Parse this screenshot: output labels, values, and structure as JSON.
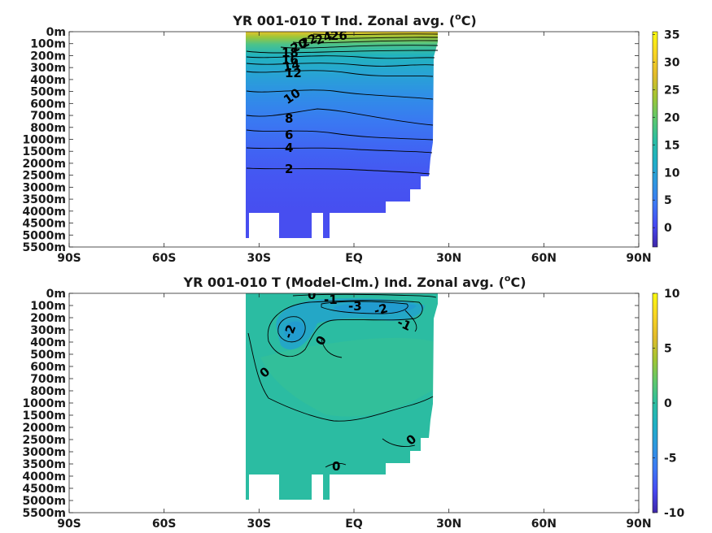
{
  "colors": {
    "parula": [
      "#3e26a8",
      "#4748f2",
      "#3d78f5",
      "#2f97e0",
      "#1fb0c5",
      "#2cbea0",
      "#60c86b",
      "#a3c532",
      "#e3bb2a",
      "#f9d523",
      "#f9fb0e"
    ],
    "background": "#ffffff",
    "axis": "#262626",
    "contour": "#000000"
  },
  "chart_data": [
    {
      "type": "heatmap",
      "title_main": "YR 001-010 T Ind. Zonal avg. (",
      "title_sup": "o",
      "title_end": "C)",
      "xlabel": "",
      "ylabel": "",
      "x_ticks": [
        "90S",
        "60S",
        "30S",
        "EQ",
        "30N",
        "60N",
        "90N"
      ],
      "y_ticks": [
        "0m",
        "100m",
        "200m",
        "300m",
        "400m",
        "500m",
        "600m",
        "700m",
        "800m",
        "1000m",
        "1500m",
        "2000m",
        "2500m",
        "3000m",
        "3500m",
        "4000m",
        "4500m",
        "5000m",
        "5500m"
      ],
      "xlim": [
        -90,
        90
      ],
      "clim": [
        -3.5,
        35.5
      ],
      "colorbar_ticks": [
        "0",
        "5",
        "10",
        "15",
        "20",
        "25",
        "30",
        "35"
      ],
      "colorbar_values": [
        0,
        5,
        10,
        15,
        20,
        25,
        30,
        35
      ],
      "contour_labels": [
        {
          "text": "26",
          "lat": -13,
          "depth": "0m-100m",
          "value": 26
        },
        {
          "text": "24",
          "lat": -16,
          "depth": "100m",
          "value": 24
        },
        {
          "text": "22",
          "lat": -20,
          "depth": "100m",
          "value": 22
        },
        {
          "text": "20",
          "lat": -23,
          "depth": "100m",
          "value": 20
        },
        {
          "text": "18",
          "lat": -26,
          "depth": "200m",
          "value": 18
        },
        {
          "text": "16",
          "lat": -26,
          "depth": "200m",
          "value": 16
        },
        {
          "text": "14",
          "lat": -25,
          "depth": "300m",
          "value": 14
        },
        {
          "text": "12",
          "lat": -25,
          "depth": "300m",
          "value": 12
        },
        {
          "text": "10",
          "lat": -25,
          "depth": "500m",
          "value": 10
        },
        {
          "text": "8",
          "lat": -26,
          "depth": "700m",
          "value": 8
        },
        {
          "text": "6",
          "lat": -26,
          "depth": "800m",
          "value": 6
        },
        {
          "text": "4",
          "lat": -27,
          "depth": "1500m",
          "value": 4
        },
        {
          "text": "2",
          "lat": -27,
          "depth": "2500m",
          "value": 2
        }
      ],
      "land_mask": "ocean basin spans approx. 35S-28N; open-ocean bottom shallows northward; deep sections only near 23S-15S and 10S"
    },
    {
      "type": "heatmap",
      "title_main": "YR 001-010 T (Model-Clm.) Ind. Zonal avg. (",
      "title_sup": "o",
      "title_end": "C)",
      "xlabel": "",
      "ylabel": "",
      "x_ticks": [
        "90S",
        "60S",
        "30S",
        "EQ",
        "30N",
        "60N",
        "90N"
      ],
      "y_ticks": [
        "0m",
        "100m",
        "200m",
        "300m",
        "400m",
        "500m",
        "600m",
        "700m",
        "800m",
        "1000m",
        "1500m",
        "2000m",
        "2500m",
        "3000m",
        "3500m",
        "4000m",
        "4500m",
        "5000m",
        "5500m"
      ],
      "xlim": [
        -90,
        90
      ],
      "clim": [
        -10,
        10
      ],
      "colorbar_ticks": [
        "10",
        "5",
        "0",
        "-5",
        "-10"
      ],
      "colorbar_values": [
        10,
        5,
        0,
        -5,
        -10
      ],
      "contour_labels": [
        {
          "text": "0",
          "lat": -15,
          "depth": "0m",
          "value": 0
        },
        {
          "text": "-1",
          "lat": -9,
          "depth": "100m",
          "value": -1
        },
        {
          "text": "-3",
          "lat": 0,
          "depth": "100m",
          "value": -3
        },
        {
          "text": "-2",
          "lat": 10,
          "depth": "100m",
          "value": -2
        },
        {
          "text": "-1",
          "lat": 17,
          "depth": "200m",
          "value": -1
        },
        {
          "text": "-2",
          "lat": -22,
          "depth": "300m",
          "value": -2
        },
        {
          "text": "0",
          "lat": -11,
          "depth": "400m",
          "value": 0
        },
        {
          "text": "0",
          "lat": -30,
          "depth": "700m",
          "value": 0
        },
        {
          "text": "0",
          "lat": 20,
          "depth": "3000m",
          "value": 0
        },
        {
          "text": "0",
          "lat": -6,
          "depth": "4000m",
          "value": 0
        }
      ],
      "land_mask": "same basin as upper panel"
    }
  ]
}
